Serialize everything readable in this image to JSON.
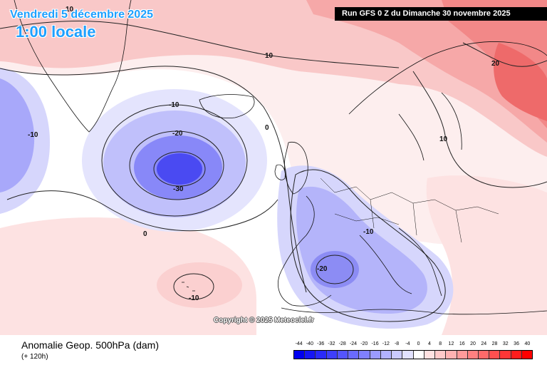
{
  "header": {
    "valid_date": "Vendredi 5 décembre 2025",
    "valid_time": "1:00 locale",
    "run_info": "Run GFS 0 Z du Dimanche 30 novembre 2025"
  },
  "map": {
    "contour_labels": [
      "10",
      "-10",
      "-20",
      "-30",
      "0",
      "20",
      "10",
      "-10",
      "-20",
      "0",
      "-10",
      "-10",
      "10"
    ],
    "copyright": "Copyright © 2025 Meteociel.fr"
  },
  "footer": {
    "parameter": "Anomalie Geop. 500hPa (dam)",
    "lead_time": "(+ 120h)"
  },
  "color_scale": {
    "labels": [
      "-44",
      "-40",
      "-36",
      "-32",
      "-28",
      "-24",
      "-20",
      "-16",
      "-12",
      "-8",
      "-4",
      "0",
      "4",
      "8",
      "12",
      "16",
      "20",
      "24",
      "28",
      "32",
      "36",
      "40"
    ],
    "colors": [
      "#0000f0",
      "#1616f6",
      "#2a2afa",
      "#3e3efc",
      "#5454fe",
      "#6a6aff",
      "#8080ff",
      "#9a9aff",
      "#b2b2ff",
      "#cacaff",
      "#e2e2ff",
      "#ffffff",
      "#ffe2e2",
      "#ffcaca",
      "#ffb2b2",
      "#ff9a9a",
      "#ff8080",
      "#ff6a6a",
      "#ff5050",
      "#ff3636",
      "#ff1c1c",
      "#ff0000"
    ]
  }
}
